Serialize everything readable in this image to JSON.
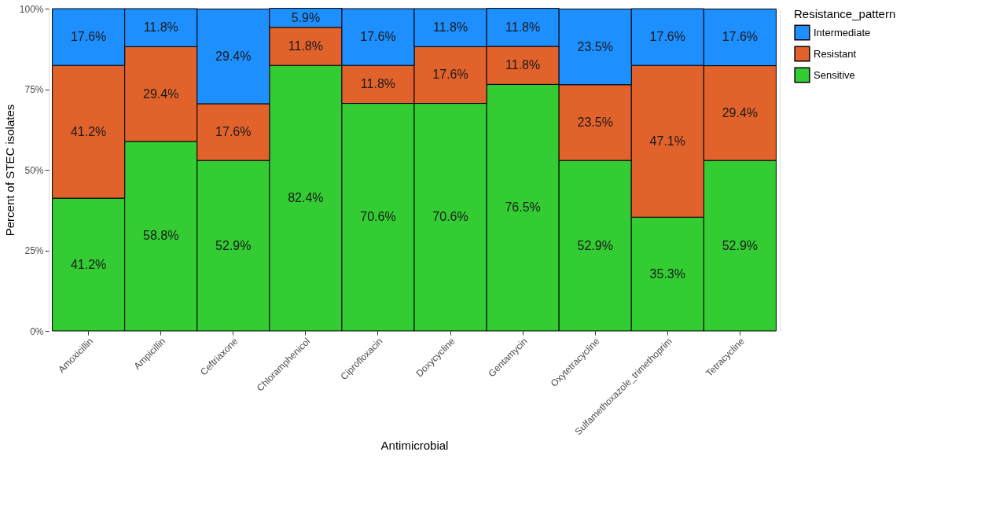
{
  "chart_data": {
    "type": "bar",
    "stacked": true,
    "xlabel": "Antimicrobial",
    "ylabel": "Percent of STEC isolates",
    "legend_title": "Resistance_pattern",
    "legend": "right",
    "grid": true,
    "categories": [
      "Amoxicillin",
      "Ampicillin",
      "Ceftriaxone",
      "Chloramphenicol",
      "Ciprofloxacin",
      "Doxycycline",
      "Gentamycin",
      "Oxytetracycline",
      "Sulfamethoxazole_trimethoprim",
      "Tetracycline"
    ],
    "ylim": [
      0,
      100
    ],
    "yticks": [
      {
        "value": 0,
        "label": "0%"
      },
      {
        "value": 25,
        "label": "25%"
      },
      {
        "value": 50,
        "label": "50%"
      },
      {
        "value": 75,
        "label": "75%"
      },
      {
        "value": 100,
        "label": "100%"
      }
    ],
    "series": [
      {
        "name": "Sensitive",
        "color": "#33cc33",
        "values": [
          41.2,
          58.8,
          52.9,
          82.4,
          70.6,
          70.6,
          76.5,
          52.9,
          35.3,
          52.9
        ],
        "value_labels": [
          "41.2%",
          "58.8%",
          "52.9%",
          "82.4%",
          "70.6%",
          "70.6%",
          "76.5%",
          "52.9%",
          "35.3%",
          "52.9%"
        ]
      },
      {
        "name": "Resistant",
        "color": "#e2622b",
        "values": [
          41.2,
          29.4,
          17.6,
          11.8,
          11.8,
          17.6,
          11.8,
          23.5,
          47.1,
          29.4
        ],
        "value_labels": [
          "41.2%",
          "29.4%",
          "17.6%",
          "11.8%",
          "11.8%",
          "17.6%",
          "11.8%",
          "23.5%",
          "47.1%",
          "29.4%"
        ]
      },
      {
        "name": "Intermediate",
        "color": "#1e8fff",
        "values": [
          17.6,
          11.8,
          29.4,
          5.9,
          17.6,
          11.8,
          11.8,
          23.5,
          17.6,
          17.6
        ],
        "value_labels": [
          "17.6%",
          "11.8%",
          "29.4%",
          "5.9%",
          "17.6%",
          "11.8%",
          "11.8%",
          "23.5%",
          "17.6%",
          "17.6%"
        ]
      }
    ]
  }
}
